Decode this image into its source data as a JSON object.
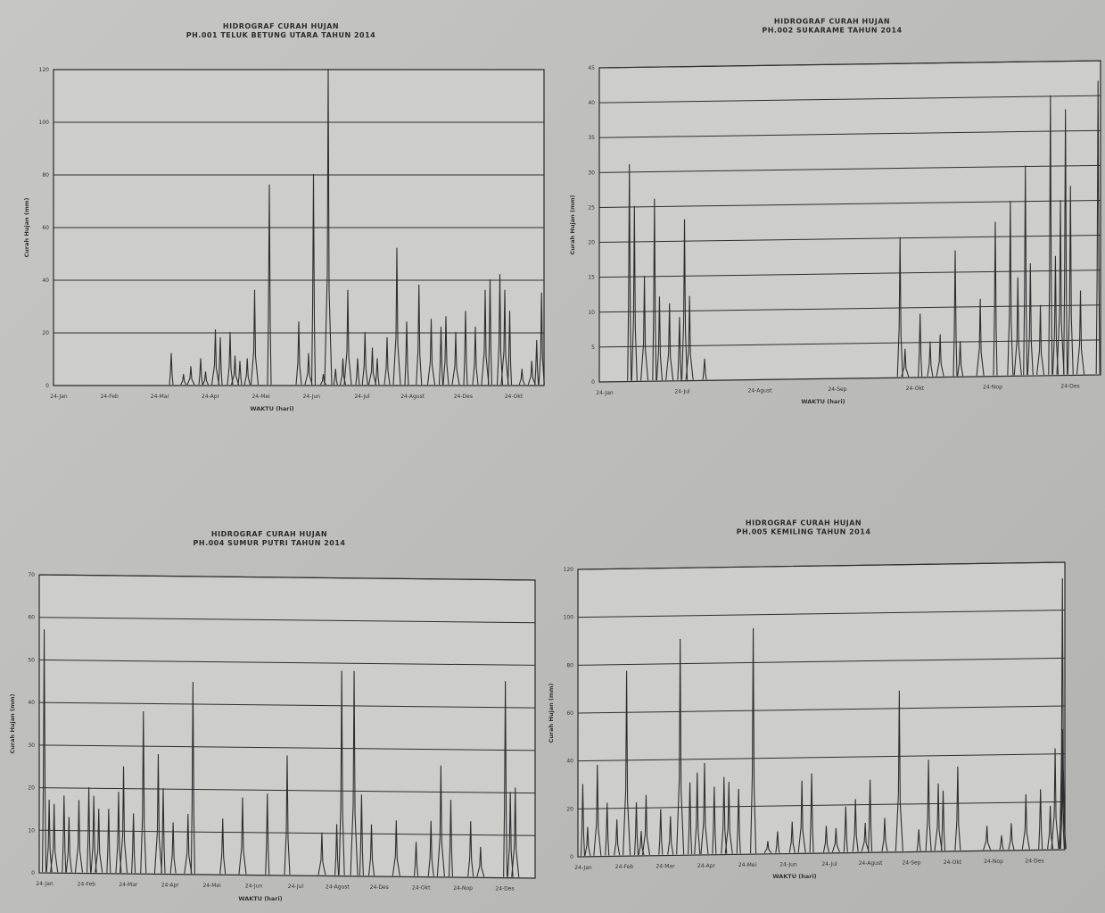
{
  "chart_data": [
    {
      "type": "line",
      "title": [
        "HIDROGRAF CURAH HUJAN",
        "PH.001 TELUK BETUNG UTARA TAHUN 2014"
      ],
      "ylabel": "Curah Hujan (mm)",
      "xlabel": "WAKTU (hari)",
      "yticks": [
        "0",
        "20",
        "40",
        "60",
        "80",
        "100",
        "120"
      ],
      "ylim": [
        0,
        120
      ],
      "xticks": [
        "24-Jan",
        "24-Feb",
        "24-Mar",
        "24-Apr",
        "24-Mei",
        "24-Jun",
        "24-Jul",
        "24-Agust",
        "24-Des",
        "24-Okt"
      ],
      "series": [
        {
          "values": [
            [
              0.24,
              12
            ],
            [
              0.265,
              4
            ],
            [
              0.28,
              7
            ],
            [
              0.3,
              10
            ],
            [
              0.31,
              5
            ],
            [
              0.33,
              21
            ],
            [
              0.34,
              18
            ],
            [
              0.36,
              20
            ],
            [
              0.37,
              11
            ],
            [
              0.38,
              9
            ],
            [
              0.395,
              10
            ],
            [
              0.41,
              36
            ],
            [
              0.44,
              76
            ],
            [
              0.5,
              24
            ],
            [
              0.52,
              12
            ],
            [
              0.53,
              80
            ],
            [
              0.55,
              4
            ],
            [
              0.56,
              120
            ],
            [
              0.575,
              6
            ],
            [
              0.59,
              10
            ],
            [
              0.6,
              36
            ],
            [
              0.62,
              10
            ],
            [
              0.635,
              20
            ],
            [
              0.65,
              14
            ],
            [
              0.66,
              10
            ],
            [
              0.68,
              18
            ],
            [
              0.7,
              52
            ],
            [
              0.72,
              24
            ],
            [
              0.745,
              38
            ],
            [
              0.77,
              25
            ],
            [
              0.79,
              22
            ],
            [
              0.8,
              26
            ],
            [
              0.82,
              20
            ],
            [
              0.84,
              28
            ],
            [
              0.86,
              22
            ],
            [
              0.88,
              36
            ],
            [
              0.89,
              40
            ],
            [
              0.91,
              42
            ],
            [
              0.92,
              36
            ],
            [
              0.93,
              28
            ],
            [
              0.955,
              6
            ],
            [
              0.975,
              9
            ],
            [
              0.985,
              17
            ],
            [
              1.0,
              35
            ]
          ]
        }
      ]
    },
    {
      "type": "line",
      "title": [
        "HIDROGRAF CURAH HUJAN",
        "PH.002 SUKARAME TAHUN 2014"
      ],
      "ylabel": "Curah Hujan (mm)",
      "xlabel": "WAKTU (hari)",
      "yticks": [
        "0",
        "5",
        "10",
        "15",
        "20",
        "25",
        "30",
        "35",
        "40",
        "45"
      ],
      "ylim": [
        0,
        45
      ],
      "xticks": [
        "24-Jan",
        "24-Jul",
        "24-Agust",
        "24-Sep",
        "24-Okt",
        "24-Nop",
        "24-Des"
      ],
      "series": [
        {
          "values": [
            [
              0.06,
              31
            ],
            [
              0.07,
              25
            ],
            [
              0.09,
              15
            ],
            [
              0.11,
              26
            ],
            [
              0.12,
              12
            ],
            [
              0.14,
              11
            ],
            [
              0.16,
              9
            ],
            [
              0.17,
              23
            ],
            [
              0.18,
              12
            ],
            [
              0.21,
              3
            ],
            [
              0.6,
              20
            ],
            [
              0.61,
              4
            ],
            [
              0.64,
              9
            ],
            [
              0.66,
              5
            ],
            [
              0.68,
              6
            ],
            [
              0.71,
              18
            ],
            [
              0.72,
              5
            ],
            [
              0.76,
              11
            ],
            [
              0.79,
              22
            ],
            [
              0.82,
              25
            ],
            [
              0.835,
              14
            ],
            [
              0.85,
              30
            ],
            [
              0.86,
              16
            ],
            [
              0.88,
              10
            ],
            [
              0.9,
              40
            ],
            [
              0.91,
              17
            ],
            [
              0.92,
              25
            ],
            [
              0.93,
              38
            ],
            [
              0.94,
              27
            ],
            [
              0.96,
              12
            ],
            [
              1.0,
              42
            ]
          ]
        }
      ]
    },
    {
      "type": "line",
      "title": [
        "HIDROGRAF CURAH HUJAN",
        "PH.004 SUMUR PUTRI TAHUN 2014"
      ],
      "ylabel": "Curah Hujan (mm)",
      "xlabel": "WAKTU (hari)",
      "yticks": [
        "0",
        "10",
        "20",
        "30",
        "40",
        "50",
        "60",
        "70"
      ],
      "ylim": [
        0,
        70
      ],
      "xticks": [
        "24-Jan",
        "24-Feb",
        "24-Mar",
        "24-Apr",
        "24-Mei",
        "24-Jun",
        "24-Jul",
        "24-Agust",
        "24-Des",
        "24-Okt",
        "24-Nop",
        "24-Des"
      ],
      "series": [
        {
          "values": [
            [
              0.01,
              57
            ],
            [
              0.02,
              17
            ],
            [
              0.03,
              16
            ],
            [
              0.05,
              18
            ],
            [
              0.06,
              13
            ],
            [
              0.08,
              17
            ],
            [
              0.1,
              20
            ],
            [
              0.11,
              18
            ],
            [
              0.12,
              15
            ],
            [
              0.14,
              15
            ],
            [
              0.16,
              19
            ],
            [
              0.17,
              25
            ],
            [
              0.19,
              14
            ],
            [
              0.21,
              38
            ],
            [
              0.24,
              28
            ],
            [
              0.25,
              20
            ],
            [
              0.27,
              12
            ],
            [
              0.3,
              14
            ],
            [
              0.31,
              45
            ],
            [
              0.37,
              13
            ],
            [
              0.41,
              18
            ],
            [
              0.46,
              19
            ],
            [
              0.5,
              28
            ],
            [
              0.57,
              10
            ],
            [
              0.6,
              12
            ],
            [
              0.61,
              48
            ],
            [
              0.635,
              48
            ],
            [
              0.65,
              19
            ],
            [
              0.67,
              12
            ],
            [
              0.72,
              13
            ],
            [
              0.76,
              8
            ],
            [
              0.79,
              13
            ],
            [
              0.81,
              26
            ],
            [
              0.83,
              18
            ],
            [
              0.87,
              13
            ],
            [
              0.89,
              7
            ],
            [
              0.94,
              46
            ],
            [
              0.95,
              20
            ],
            [
              0.96,
              21
            ]
          ]
        }
      ]
    },
    {
      "type": "line",
      "title": [
        "HIDROGRAF CURAH HUJAN",
        "PH.005 KEMILING TAHUN 2014"
      ],
      "ylabel": "Curah Hujan (mm)",
      "xlabel": "WAKTU (hari)",
      "yticks": [
        "0",
        "20",
        "40",
        "60",
        "80",
        "100",
        "120"
      ],
      "ylim": [
        0,
        120
      ],
      "xticks": [
        "24-Jan",
        "24-Feb",
        "24-Mar",
        "24-Apr",
        "24-Mei",
        "24-Jun",
        "24-Jul",
        "24-Agust",
        "24-Sep",
        "24-Okt",
        "24-Nop",
        "24-Des"
      ],
      "series": [
        {
          "values": [
            [
              0.01,
              30
            ],
            [
              0.02,
              12
            ],
            [
              0.04,
              38
            ],
            [
              0.06,
              22
            ],
            [
              0.08,
              15
            ],
            [
              0.1,
              77
            ],
            [
              0.12,
              22
            ],
            [
              0.13,
              10
            ],
            [
              0.14,
              25
            ],
            [
              0.17,
              19
            ],
            [
              0.19,
              16
            ],
            [
              0.21,
              90
            ],
            [
              0.23,
              30
            ],
            [
              0.245,
              34
            ],
            [
              0.26,
              38
            ],
            [
              0.28,
              28
            ],
            [
              0.3,
              32
            ],
            [
              0.31,
              30
            ],
            [
              0.33,
              27
            ],
            [
              0.36,
              94
            ],
            [
              0.39,
              5
            ],
            [
              0.41,
              9
            ],
            [
              0.44,
              13
            ],
            [
              0.46,
              30
            ],
            [
              0.48,
              33
            ],
            [
              0.51,
              11
            ],
            [
              0.53,
              10
            ],
            [
              0.55,
              19
            ],
            [
              0.57,
              22
            ],
            [
              0.59,
              12
            ],
            [
              0.6,
              30
            ],
            [
              0.63,
              14
            ],
            [
              0.66,
              67
            ],
            [
              0.7,
              9
            ],
            [
              0.72,
              38
            ],
            [
              0.74,
              28
            ],
            [
              0.75,
              25
            ],
            [
              0.78,
              35
            ],
            [
              0.84,
              10
            ],
            [
              0.87,
              6
            ],
            [
              0.89,
              11
            ],
            [
              0.92,
              23
            ],
            [
              0.95,
              25
            ],
            [
              0.97,
              18
            ],
            [
              0.98,
              42
            ],
            [
              1.0,
              30
            ],
            [
              1.02,
              113
            ],
            [
              1.04,
              50
            ]
          ]
        }
      ]
    }
  ]
}
